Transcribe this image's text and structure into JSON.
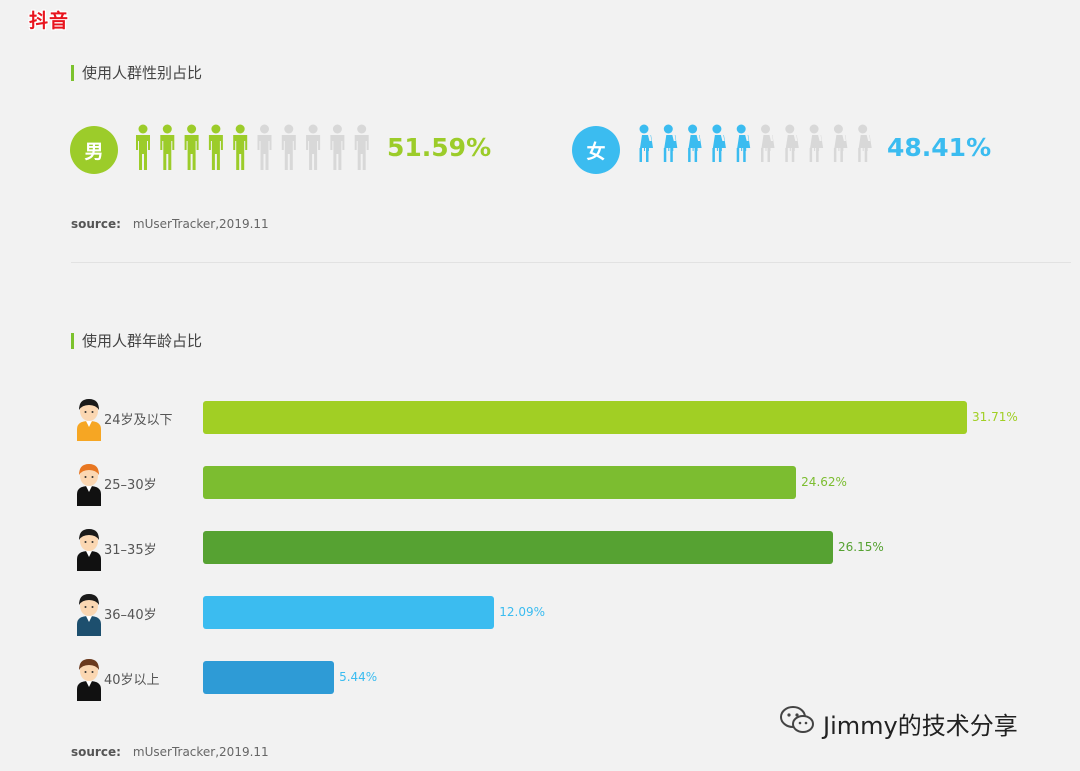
{
  "brand": "抖音",
  "gender_section": {
    "title": "使用人群性别占比",
    "male": {
      "label": "男",
      "percent": "51.59%",
      "value": 51.59,
      "color": "#9ccc2a",
      "filled_icons": 5,
      "total_icons": 10
    },
    "female": {
      "label": "女",
      "percent": "48.41%",
      "value": 48.41,
      "color": "#3bbcf0",
      "filled_icons": 5,
      "total_icons": 10
    },
    "source_label": "source:",
    "source_text": "mUserTracker,2019.11"
  },
  "age_section": {
    "title": "使用人群年龄占比",
    "source_label": "source:",
    "source_text": "mUserTracker,2019.11"
  },
  "chart_data": {
    "type": "bar",
    "orientation": "horizontal",
    "categories": [
      "24岁及以下",
      "25–30岁",
      "31–35岁",
      "36–40岁",
      "40岁以上"
    ],
    "values": [
      31.71,
      24.62,
      26.15,
      12.09,
      5.44
    ],
    "value_labels": [
      "31.71%",
      "24.62%",
      "26.15%",
      "12.09%",
      "5.44%"
    ],
    "colors": [
      "#a1cf24",
      "#7cbd30",
      "#56a232",
      "#3bbcf0",
      "#2e9bd6"
    ],
    "label_colors": [
      "#a1cf24",
      "#7cbd30",
      "#56a232",
      "#3bbcf0",
      "#3bbcf0"
    ],
    "avatar_colors": [
      "#f6a623",
      "#111111",
      "#111111",
      "#1d4f6e",
      "#111111"
    ],
    "hair_colors": [
      "#1a1a1a",
      "#e87722",
      "#1a1a1a",
      "#1a1a1a",
      "#6b3a1e"
    ],
    "grid": false
  },
  "watermark": "Jimmy的技术分享"
}
